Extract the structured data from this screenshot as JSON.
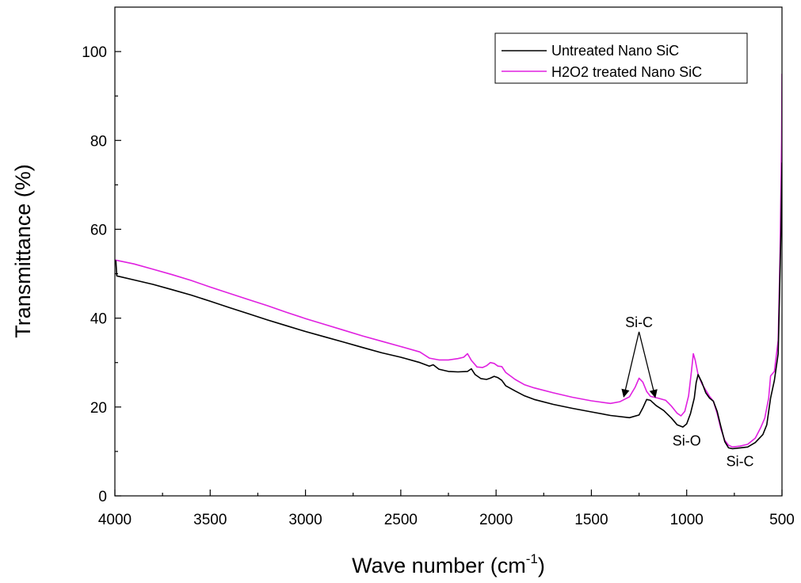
{
  "chart_data": {
    "type": "line",
    "title": "",
    "xlabel": "Wave number (cm",
    "xlabel_sup": "-1",
    "xlabel_close": ")",
    "ylabel": "Transmittance (%)",
    "xlim": [
      4000,
      500
    ],
    "ylim": [
      0,
      110
    ],
    "x_reversed": true,
    "grid": false,
    "legend_position": "top-right",
    "x_ticks": [
      4000,
      3500,
      3000,
      2500,
      2000,
      1500,
      1000,
      500
    ],
    "y_ticks": [
      0,
      20,
      40,
      60,
      80,
      100
    ],
    "series": [
      {
        "name": "Untreated Nano SiC",
        "color": "#000000",
        "points": [
          [
            3995,
            53
          ],
          [
            3990,
            49.5
          ],
          [
            3900,
            48.6
          ],
          [
            3800,
            47.6
          ],
          [
            3700,
            46.4
          ],
          [
            3600,
            45.2
          ],
          [
            3500,
            43.8
          ],
          [
            3400,
            42.4
          ],
          [
            3300,
            41.0
          ],
          [
            3200,
            39.6
          ],
          [
            3100,
            38.3
          ],
          [
            3000,
            37.0
          ],
          [
            2900,
            35.8
          ],
          [
            2800,
            34.6
          ],
          [
            2700,
            33.4
          ],
          [
            2600,
            32.2
          ],
          [
            2500,
            31.2
          ],
          [
            2400,
            30.0
          ],
          [
            2350,
            29.2
          ],
          [
            2330,
            29.5
          ],
          [
            2300,
            28.5
          ],
          [
            2250,
            28.0
          ],
          [
            2200,
            27.9
          ],
          [
            2150,
            28.0
          ],
          [
            2130,
            28.6
          ],
          [
            2110,
            27.3
          ],
          [
            2080,
            26.4
          ],
          [
            2050,
            26.2
          ],
          [
            2030,
            26.5
          ],
          [
            2010,
            26.9
          ],
          [
            1990,
            26.6
          ],
          [
            1970,
            26.0
          ],
          [
            1950,
            24.8
          ],
          [
            1900,
            23.6
          ],
          [
            1850,
            22.5
          ],
          [
            1800,
            21.7
          ],
          [
            1700,
            20.6
          ],
          [
            1600,
            19.7
          ],
          [
            1500,
            18.9
          ],
          [
            1400,
            18.1
          ],
          [
            1300,
            17.6
          ],
          [
            1250,
            18.2
          ],
          [
            1230,
            19.8
          ],
          [
            1210,
            21.7
          ],
          [
            1190,
            21.5
          ],
          [
            1160,
            20.3
          ],
          [
            1120,
            19.2
          ],
          [
            1080,
            17.5
          ],
          [
            1050,
            16.0
          ],
          [
            1020,
            15.5
          ],
          [
            1000,
            16.2
          ],
          [
            980,
            18.5
          ],
          [
            960,
            22.0
          ],
          [
            950,
            25.5
          ],
          [
            940,
            27.3
          ],
          [
            920,
            25.5
          ],
          [
            900,
            23.2
          ],
          [
            880,
            22.0
          ],
          [
            860,
            21.3
          ],
          [
            840,
            19.0
          ],
          [
            820,
            15.5
          ],
          [
            800,
            12.2
          ],
          [
            780,
            10.8
          ],
          [
            760,
            10.6
          ],
          [
            720,
            10.8
          ],
          [
            680,
            11.0
          ],
          [
            640,
            12.0
          ],
          [
            600,
            13.8
          ],
          [
            580,
            16.0
          ],
          [
            560,
            22.0
          ],
          [
            540,
            26.0
          ],
          [
            520,
            32.0
          ],
          [
            505,
            60.0
          ],
          [
            500,
            75.0
          ]
        ]
      },
      {
        "name": "H2O2 treated Nano SiC",
        "color": "#e020e0",
        "points": [
          [
            4000,
            53.1
          ],
          [
            3900,
            52.2
          ],
          [
            3800,
            51.0
          ],
          [
            3700,
            49.8
          ],
          [
            3600,
            48.5
          ],
          [
            3500,
            47.0
          ],
          [
            3400,
            45.6
          ],
          [
            3300,
            44.2
          ],
          [
            3200,
            42.8
          ],
          [
            3100,
            41.3
          ],
          [
            3000,
            39.9
          ],
          [
            2900,
            38.6
          ],
          [
            2800,
            37.3
          ],
          [
            2700,
            36.0
          ],
          [
            2600,
            34.8
          ],
          [
            2500,
            33.6
          ],
          [
            2400,
            32.4
          ],
          [
            2350,
            31.0
          ],
          [
            2300,
            30.6
          ],
          [
            2250,
            30.6
          ],
          [
            2200,
            30.9
          ],
          [
            2170,
            31.2
          ],
          [
            2150,
            32.0
          ],
          [
            2130,
            30.5
          ],
          [
            2100,
            29.0
          ],
          [
            2070,
            28.9
          ],
          [
            2050,
            29.3
          ],
          [
            2030,
            30.0
          ],
          [
            2010,
            29.8
          ],
          [
            1990,
            29.2
          ],
          [
            1970,
            29.1
          ],
          [
            1950,
            27.8
          ],
          [
            1900,
            26.2
          ],
          [
            1850,
            25.0
          ],
          [
            1800,
            24.3
          ],
          [
            1700,
            23.2
          ],
          [
            1600,
            22.2
          ],
          [
            1500,
            21.4
          ],
          [
            1400,
            20.8
          ],
          [
            1350,
            21.2
          ],
          [
            1300,
            22.3
          ],
          [
            1270,
            24.5
          ],
          [
            1250,
            26.5
          ],
          [
            1230,
            25.6
          ],
          [
            1210,
            23.5
          ],
          [
            1190,
            22.4
          ],
          [
            1150,
            22.0
          ],
          [
            1110,
            21.5
          ],
          [
            1080,
            20.2
          ],
          [
            1050,
            18.6
          ],
          [
            1030,
            18.0
          ],
          [
            1010,
            19.0
          ],
          [
            990,
            22.5
          ],
          [
            975,
            28.0
          ],
          [
            965,
            32.0
          ],
          [
            955,
            30.5
          ],
          [
            940,
            27.3
          ],
          [
            920,
            25.2
          ],
          [
            900,
            23.8
          ],
          [
            880,
            22.4
          ],
          [
            860,
            21.3
          ],
          [
            840,
            18.5
          ],
          [
            820,
            15.0
          ],
          [
            800,
            12.5
          ],
          [
            780,
            11.4
          ],
          [
            760,
            11.0
          ],
          [
            720,
            11.2
          ],
          [
            680,
            11.6
          ],
          [
            640,
            13.0
          ],
          [
            610,
            15.5
          ],
          [
            590,
            17.5
          ],
          [
            570,
            22.0
          ],
          [
            560,
            27.0
          ],
          [
            540,
            28.0
          ],
          [
            520,
            35.0
          ],
          [
            510,
            55.0
          ],
          [
            502,
            80.0
          ],
          [
            500,
            95.0
          ]
        ]
      }
    ],
    "annotations": [
      {
        "text": "Si-C",
        "x": 1250,
        "y": 38,
        "arrows_to": [
          [
            1330,
            22.3
          ],
          [
            1165,
            22.2
          ]
        ]
      },
      {
        "text": "Si-O",
        "x": 1000,
        "y": 11.3
      },
      {
        "text": "Si-C",
        "x": 720,
        "y": 6.7
      }
    ]
  }
}
